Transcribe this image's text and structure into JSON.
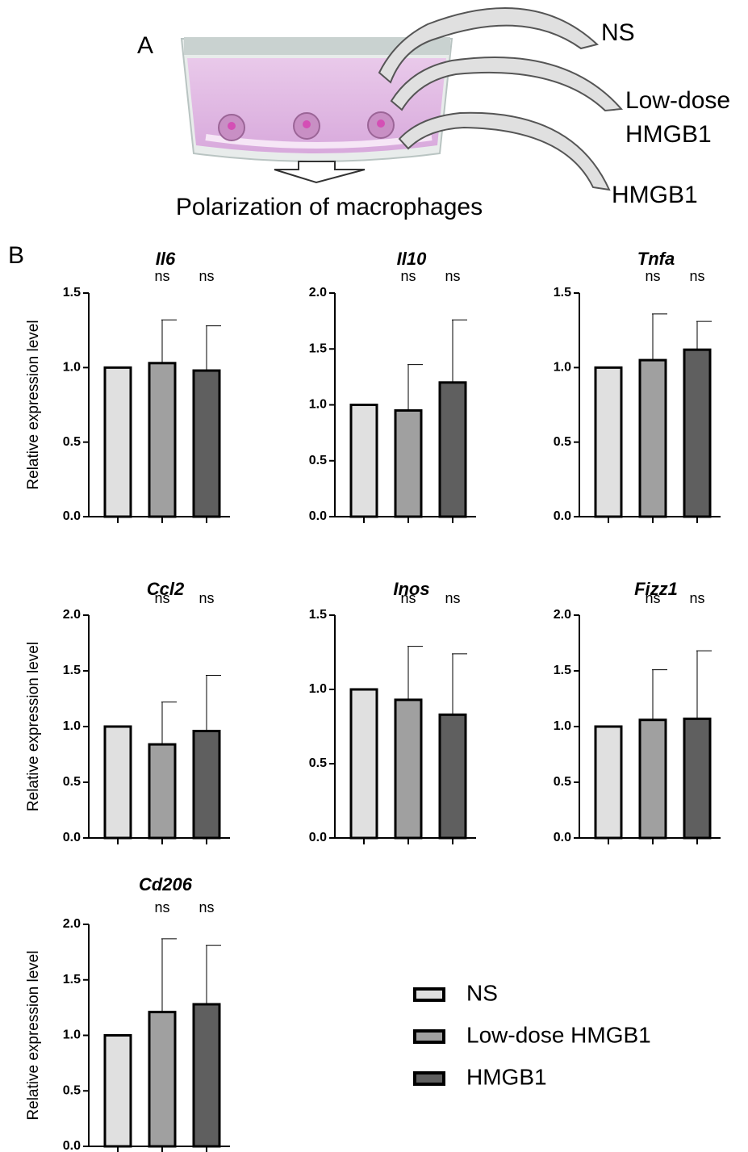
{
  "panel_a": {
    "label": "A",
    "arrow_labels": [
      "NS",
      "Low-dose",
      "HMGB1",
      "HMGB1"
    ],
    "caption": "Polarization of macrophages"
  },
  "panel_b": {
    "label": "B"
  },
  "legend": [
    {
      "name": "NS",
      "color": "#e0e0e0"
    },
    {
      "name": "Low-dose HMGB1",
      "color": "#a0a0a0"
    },
    {
      "name": "HMGB1",
      "color": "#5f5f5f"
    }
  ],
  "chart_data": [
    {
      "type": "bar",
      "title": "Il6",
      "ylabel": "Relative expression level",
      "categories": [
        null,
        null,
        null
      ],
      "values": [
        1.0,
        1.03,
        0.98
      ],
      "errors": [
        null,
        0.29,
        0.3
      ],
      "significance": [
        null,
        "ns",
        "ns"
      ],
      "ylim": [
        0,
        1.5
      ],
      "yticks": [
        {
          "value": 0,
          "label": "0.0"
        },
        {
          "value": 0.5,
          "label": "0.5"
        },
        {
          "value": 1,
          "label": "1.0"
        },
        {
          "value": 1.5,
          "label": "1.5"
        }
      ]
    },
    {
      "type": "bar",
      "title": "Il10",
      "categories": [
        null,
        null,
        null
      ],
      "values": [
        1.0,
        0.95,
        1.2
      ],
      "errors": [
        null,
        0.41,
        0.56
      ],
      "significance": [
        null,
        "ns",
        "ns"
      ],
      "ylim": [
        0,
        2
      ],
      "yticks": [
        {
          "value": 0,
          "label": "0.0"
        },
        {
          "value": 0.5,
          "label": "0.5"
        },
        {
          "value": 1,
          "label": "1.0"
        },
        {
          "value": 1.5,
          "label": "1.5"
        },
        {
          "value": 2,
          "label": "2.0"
        }
      ]
    },
    {
      "type": "bar",
      "title": "Tnfa",
      "categories": [
        null,
        null,
        null
      ],
      "values": [
        1.0,
        1.05,
        1.12
      ],
      "errors": [
        null,
        0.31,
        0.19
      ],
      "significance": [
        null,
        "ns",
        "ns"
      ],
      "ylim": [
        0,
        1.5
      ],
      "yticks": [
        {
          "value": 0,
          "label": "0.0"
        },
        {
          "value": 0.5,
          "label": "0.5"
        },
        {
          "value": 1,
          "label": "1.0"
        },
        {
          "value": 1.5,
          "label": "1.5"
        }
      ]
    },
    {
      "type": "bar",
      "title": "Ccl2",
      "ylabel": "Relative expression level",
      "categories": [
        null,
        null,
        null
      ],
      "values": [
        1.0,
        0.84,
        0.96
      ],
      "errors": [
        null,
        0.38,
        0.5
      ],
      "significance": [
        null,
        "ns",
        "ns"
      ],
      "ylim": [
        0,
        2
      ],
      "yticks": [
        {
          "value": 0,
          "label": "0.0"
        },
        {
          "value": 0.5,
          "label": "0.5"
        },
        {
          "value": 1,
          "label": "1.0"
        },
        {
          "value": 1.5,
          "label": "1.5"
        },
        {
          "value": 2,
          "label": "2.0"
        }
      ]
    },
    {
      "type": "bar",
      "title": "Inos",
      "categories": [
        null,
        null,
        null
      ],
      "values": [
        1.0,
        0.93,
        0.83
      ],
      "errors": [
        null,
        0.36,
        0.41
      ],
      "significance": [
        null,
        "ns",
        "ns"
      ],
      "ylim": [
        0,
        1.5
      ],
      "yticks": [
        {
          "value": 0,
          "label": "0.0"
        },
        {
          "value": 0.5,
          "label": "0.5"
        },
        {
          "value": 1,
          "label": "1.0"
        },
        {
          "value": 1.5,
          "label": "1.5"
        }
      ]
    },
    {
      "type": "bar",
      "title": "Fizz1",
      "categories": [
        null,
        null,
        null
      ],
      "values": [
        1.0,
        1.06,
        1.07
      ],
      "errors": [
        null,
        0.45,
        0.61
      ],
      "significance": [
        null,
        "ns",
        "ns"
      ],
      "ylim": [
        0,
        2
      ],
      "yticks": [
        {
          "value": 0,
          "label": "0.0"
        },
        {
          "value": 0.5,
          "label": "0.5"
        },
        {
          "value": 1,
          "label": "1.0"
        },
        {
          "value": 1.5,
          "label": "1.5"
        },
        {
          "value": 2,
          "label": "2.0"
        }
      ]
    },
    {
      "type": "bar",
      "title": "Cd206",
      "ylabel": "Relative expression level",
      "categories": [
        null,
        null,
        null
      ],
      "values": [
        1.0,
        1.21,
        1.28
      ],
      "errors": [
        null,
        0.66,
        0.53
      ],
      "significance": [
        null,
        "ns",
        "ns"
      ],
      "ylim": [
        0,
        2
      ],
      "yticks": [
        {
          "value": 0,
          "label": "0.0"
        },
        {
          "value": 0.5,
          "label": "0.5"
        },
        {
          "value": 1,
          "label": "1.0"
        },
        {
          "value": 1.5,
          "label": "1.5"
        },
        {
          "value": 2,
          "label": "2.0"
        }
      ]
    }
  ]
}
